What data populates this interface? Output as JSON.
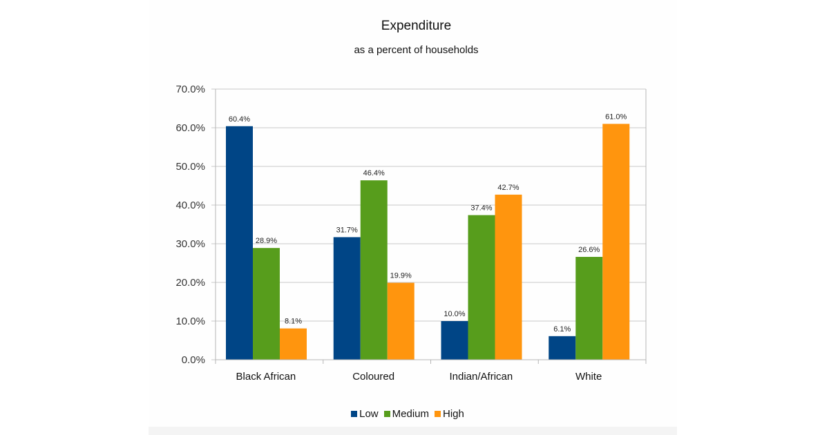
{
  "chart_data": {
    "type": "bar",
    "title": "Expenditure",
    "subtitle": "as a percent of households",
    "categories": [
      "Black African",
      "Coloured",
      "Indian/African",
      "White"
    ],
    "series": [
      {
        "name": "Low",
        "color": "#004586",
        "values": [
          60.4,
          31.7,
          10.0,
          6.1
        ],
        "labels": [
          "60.4%",
          "31.7%",
          "10.0%",
          "6.1%"
        ]
      },
      {
        "name": "Medium",
        "color": "#579d1c",
        "values": [
          28.9,
          46.4,
          37.4,
          26.6
        ],
        "labels": [
          "28.9%",
          "46.4%",
          "37.4%",
          "26.6%"
        ]
      },
      {
        "name": "High",
        "color": "#ff950e",
        "values": [
          8.1,
          19.9,
          42.7,
          61.0
        ],
        "labels": [
          "8.1%",
          "19.9%",
          "42.7%",
          "61.0%"
        ]
      }
    ],
    "ylim": [
      0,
      70
    ],
    "yticks": [
      "0.0%",
      "10.0%",
      "20.0%",
      "30.0%",
      "40.0%",
      "50.0%",
      "60.0%",
      "70.0%"
    ],
    "grid": true,
    "legend": "bottom"
  }
}
